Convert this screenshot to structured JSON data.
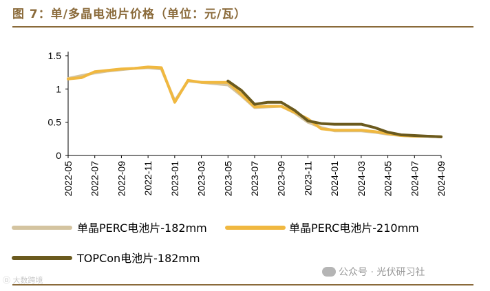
{
  "header": {
    "title": "图 7：单/多晶电池片价格（单位：元/瓦）"
  },
  "watermark": {
    "text": "公众号 · 光伏研习社"
  },
  "logo": {
    "text": "㉤ 大数跨境"
  },
  "chart_data": {
    "type": "line",
    "title": "图 7：单/多晶电池片价格（单位：元/瓦）",
    "xlabel": "",
    "ylabel": "",
    "ylim": [
      0,
      1.5
    ],
    "yticks": [
      0,
      0.5,
      1,
      1.5
    ],
    "ytick_labels": [
      "0",
      "0.5",
      "1",
      "1.5"
    ],
    "xlim": [
      "2022-05",
      "2024-09"
    ],
    "xtick_labels": [
      "2022-05",
      "2022-07",
      "2022-09",
      "2022-11",
      "2023-01",
      "2023-03",
      "2023-05",
      "2023-07",
      "2023-09",
      "2023-11",
      "2024-01",
      "2024-03",
      "2024-05",
      "2024-07",
      "2024-09"
    ],
    "grid": false,
    "legend": "bottom",
    "colors": {
      "perc182": "#d4c4a0",
      "perc210": "#f0b840",
      "topcon": "#6b5a1e"
    },
    "series": [
      {
        "name": "单晶PERC电池片-182mm",
        "color_key": "perc182",
        "points": [
          [
            "2022-05",
            1.16
          ],
          [
            "2022-06",
            1.2
          ],
          [
            "2022-07",
            1.24
          ],
          [
            "2022-08",
            1.27
          ],
          [
            "2022-09",
            1.29
          ],
          [
            "2022-10",
            1.31
          ],
          [
            "2022-11",
            1.32
          ],
          [
            "2022-12",
            1.3
          ],
          [
            "2023-01",
            0.82
          ],
          [
            "2023-02",
            1.12
          ],
          [
            "2023-03",
            1.1
          ],
          [
            "2023-04",
            1.08
          ],
          [
            "2023-05",
            1.06
          ],
          [
            "2023-06",
            0.9
          ],
          [
            "2023-07",
            0.72
          ],
          [
            "2023-08",
            0.73
          ],
          [
            "2023-09",
            0.74
          ],
          [
            "2023-10",
            0.64
          ],
          [
            "2023-11",
            0.5
          ],
          [
            "2023-12",
            0.42
          ],
          [
            "2024-01",
            0.37
          ],
          [
            "2024-02",
            0.37
          ],
          [
            "2024-03",
            0.37
          ],
          [
            "2024-04",
            0.35
          ],
          [
            "2024-05",
            0.32
          ],
          [
            "2024-06",
            0.3
          ],
          [
            "2024-07",
            0.29
          ],
          [
            "2024-08",
            0.29
          ],
          [
            "2024-09",
            0.28
          ]
        ]
      },
      {
        "name": "单晶PERC电池片-210mm",
        "color_key": "perc210",
        "points": [
          [
            "2022-05",
            1.15
          ],
          [
            "2022-06",
            1.17
          ],
          [
            "2022-07",
            1.26
          ],
          [
            "2022-08",
            1.28
          ],
          [
            "2022-09",
            1.3
          ],
          [
            "2022-10",
            1.31
          ],
          [
            "2022-11",
            1.33
          ],
          [
            "2022-12",
            1.32
          ],
          [
            "2023-01",
            0.8
          ],
          [
            "2023-02",
            1.13
          ],
          [
            "2023-03",
            1.1
          ],
          [
            "2023-04",
            1.1
          ],
          [
            "2023-05",
            1.1
          ],
          [
            "2023-06",
            0.92
          ],
          [
            "2023-07",
            0.73
          ],
          [
            "2023-08",
            0.74
          ],
          [
            "2023-09",
            0.74
          ],
          [
            "2023-10",
            0.65
          ],
          [
            "2023-11",
            0.55
          ],
          [
            "2023-12",
            0.4
          ],
          [
            "2024-01",
            0.38
          ],
          [
            "2024-02",
            0.38
          ],
          [
            "2024-03",
            0.38
          ],
          [
            "2024-04",
            0.36
          ],
          [
            "2024-05",
            0.33
          ],
          [
            "2024-06",
            0.3
          ],
          [
            "2024-07",
            0.29
          ],
          [
            "2024-08",
            0.29
          ],
          [
            "2024-09",
            0.28
          ]
        ]
      },
      {
        "name": "TOPCon电池片-182mm",
        "color_key": "topcon",
        "points": [
          [
            "2023-05",
            1.12
          ],
          [
            "2023-06",
            0.98
          ],
          [
            "2023-07",
            0.77
          ],
          [
            "2023-08",
            0.8
          ],
          [
            "2023-09",
            0.8
          ],
          [
            "2023-10",
            0.68
          ],
          [
            "2023-11",
            0.52
          ],
          [
            "2023-12",
            0.48
          ],
          [
            "2024-01",
            0.47
          ],
          [
            "2024-02",
            0.47
          ],
          [
            "2024-03",
            0.47
          ],
          [
            "2024-04",
            0.42
          ],
          [
            "2024-05",
            0.35
          ],
          [
            "2024-06",
            0.31
          ],
          [
            "2024-07",
            0.3
          ],
          [
            "2024-08",
            0.29
          ],
          [
            "2024-09",
            0.28
          ]
        ]
      }
    ]
  }
}
